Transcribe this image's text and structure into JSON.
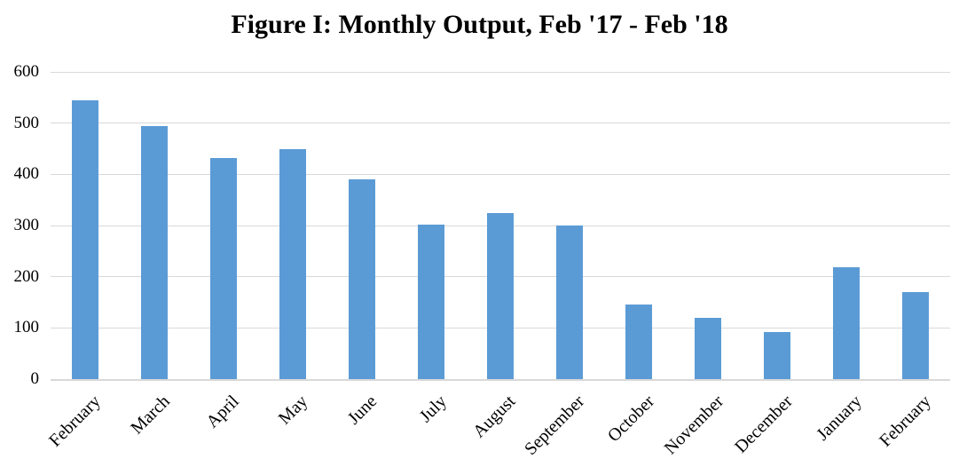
{
  "chart_data": {
    "type": "bar",
    "title": "Figure I: Monthly Output, Feb '17 - Feb '18",
    "categories": [
      "February",
      "March",
      "April",
      "May",
      "June",
      "July",
      "August",
      "September",
      "October",
      "November",
      "December",
      "January",
      "February"
    ],
    "values": [
      545,
      495,
      432,
      450,
      390,
      302,
      325,
      300,
      145,
      120,
      92,
      218,
      170
    ],
    "xlabel": "",
    "ylabel": "",
    "ylim": [
      0,
      600
    ],
    "yticks": [
      0,
      100,
      200,
      300,
      400,
      500,
      600
    ],
    "grid": true,
    "legend_position": "none",
    "bar_color": "#5b9bd5",
    "gridline_color": "#d9d9d9",
    "text_color": "#000000"
  }
}
